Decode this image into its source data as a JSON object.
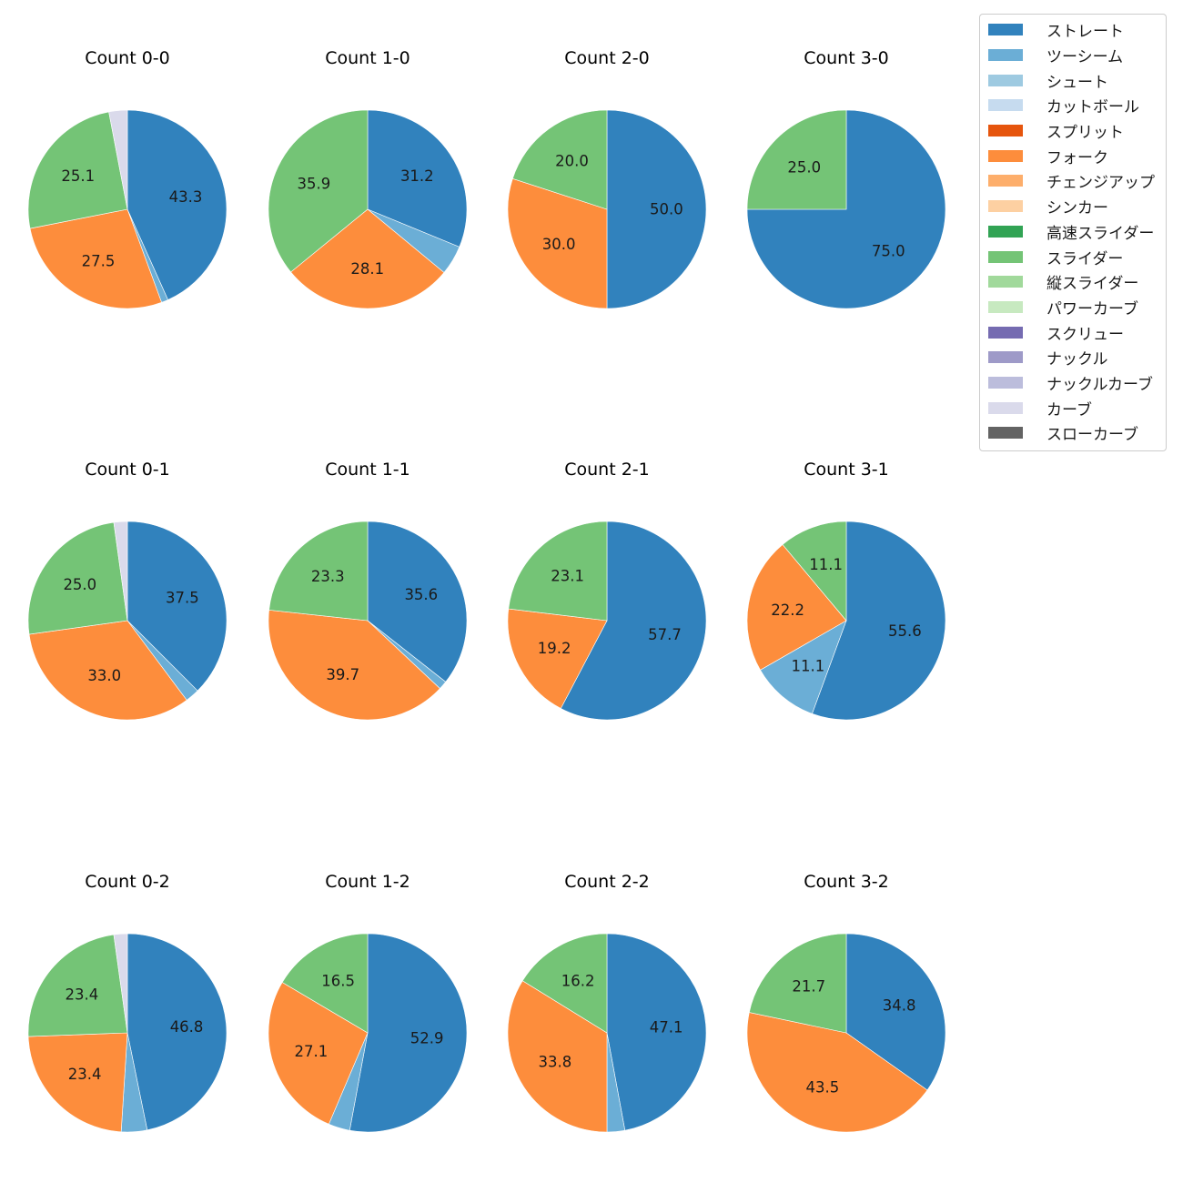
{
  "chart_data": {
    "type": "pie",
    "categories": [
      "ストレート",
      "ツーシーム",
      "シュート",
      "カットボール",
      "スプリット",
      "フォーク",
      "チェンジアップ",
      "シンカー",
      "高速スライダー",
      "スライダー",
      "縦スライダー",
      "パワーカーブ",
      "スクリュー",
      "ナックル",
      "ナックルカーブ",
      "カーブ",
      "スローカーブ"
    ],
    "colors": [
      "#3182bd",
      "#6baed6",
      "#9ecae1",
      "#c6dbef",
      "#e6550d",
      "#fd8d3c",
      "#fdae6b",
      "#fdd0a2",
      "#31a354",
      "#74c476",
      "#a1d99b",
      "#c7e9c0",
      "#756bb1",
      "#9e9ac8",
      "#bcbddc",
      "#dadaeb",
      "#636363"
    ],
    "legend_position": "top-right",
    "charts": [
      {
        "title": "Count 0-0",
        "slices": [
          {
            "category": "ストレート",
            "value": 43.3,
            "label": "43.3"
          },
          {
            "category": "ツーシーム",
            "value": 1.1,
            "label": ""
          },
          {
            "category": "フォーク",
            "value": 27.5,
            "label": "27.5"
          },
          {
            "category": "スライダー",
            "value": 25.1,
            "label": "25.1"
          },
          {
            "category": "カーブ",
            "value": 3.0,
            "label": ""
          }
        ]
      },
      {
        "title": "Count 1-0",
        "slices": [
          {
            "category": "ストレート",
            "value": 31.2,
            "label": "31.2"
          },
          {
            "category": "ツーシーム",
            "value": 4.8,
            "label": ""
          },
          {
            "category": "フォーク",
            "value": 28.1,
            "label": "28.1"
          },
          {
            "category": "スライダー",
            "value": 35.9,
            "label": "35.9"
          }
        ]
      },
      {
        "title": "Count 2-0",
        "slices": [
          {
            "category": "ストレート",
            "value": 50.0,
            "label": "50.0"
          },
          {
            "category": "フォーク",
            "value": 30.0,
            "label": "30.0"
          },
          {
            "category": "スライダー",
            "value": 20.0,
            "label": "20.0"
          }
        ]
      },
      {
        "title": "Count 3-0",
        "slices": [
          {
            "category": "ストレート",
            "value": 75.0,
            "label": "75.0"
          },
          {
            "category": "スライダー",
            "value": 25.0,
            "label": "25.0"
          }
        ]
      },
      {
        "title": "Count 0-1",
        "slices": [
          {
            "category": "ストレート",
            "value": 37.5,
            "label": "37.5"
          },
          {
            "category": "ツーシーム",
            "value": 2.3,
            "label": ""
          },
          {
            "category": "フォーク",
            "value": 33.0,
            "label": "33.0"
          },
          {
            "category": "スライダー",
            "value": 25.0,
            "label": "25.0"
          },
          {
            "category": "カーブ",
            "value": 2.2,
            "label": ""
          }
        ]
      },
      {
        "title": "Count 1-1",
        "slices": [
          {
            "category": "ストレート",
            "value": 35.6,
            "label": "35.6"
          },
          {
            "category": "ツーシーム",
            "value": 1.4,
            "label": ""
          },
          {
            "category": "フォーク",
            "value": 39.7,
            "label": "39.7"
          },
          {
            "category": "スライダー",
            "value": 23.3,
            "label": "23.3"
          }
        ]
      },
      {
        "title": "Count 2-1",
        "slices": [
          {
            "category": "ストレート",
            "value": 57.7,
            "label": "57.7"
          },
          {
            "category": "フォーク",
            "value": 19.2,
            "label": "19.2"
          },
          {
            "category": "スライダー",
            "value": 23.1,
            "label": "23.1"
          }
        ]
      },
      {
        "title": "Count 3-1",
        "slices": [
          {
            "category": "ストレート",
            "value": 55.6,
            "label": "55.6"
          },
          {
            "category": "ツーシーム",
            "value": 11.1,
            "label": "11.1"
          },
          {
            "category": "フォーク",
            "value": 22.2,
            "label": "22.2"
          },
          {
            "category": "スライダー",
            "value": 11.1,
            "label": "11.1"
          }
        ]
      },
      {
        "title": "Count 0-2",
        "slices": [
          {
            "category": "ストレート",
            "value": 46.8,
            "label": "46.8"
          },
          {
            "category": "ツーシーム",
            "value": 4.2,
            "label": ""
          },
          {
            "category": "フォーク",
            "value": 23.4,
            "label": "23.4"
          },
          {
            "category": "スライダー",
            "value": 23.4,
            "label": "23.4"
          },
          {
            "category": "カーブ",
            "value": 2.2,
            "label": ""
          }
        ]
      },
      {
        "title": "Count 1-2",
        "slices": [
          {
            "category": "ストレート",
            "value": 52.9,
            "label": "52.9"
          },
          {
            "category": "ツーシーム",
            "value": 3.5,
            "label": ""
          },
          {
            "category": "フォーク",
            "value": 27.1,
            "label": "27.1"
          },
          {
            "category": "スライダー",
            "value": 16.5,
            "label": "16.5"
          }
        ]
      },
      {
        "title": "Count 2-2",
        "slices": [
          {
            "category": "ストレート",
            "value": 47.1,
            "label": "47.1"
          },
          {
            "category": "ツーシーム",
            "value": 2.9,
            "label": ""
          },
          {
            "category": "フォーク",
            "value": 33.8,
            "label": "33.8"
          },
          {
            "category": "スライダー",
            "value": 16.2,
            "label": "16.2"
          }
        ]
      },
      {
        "title": "Count 3-2",
        "slices": [
          {
            "category": "ストレート",
            "value": 34.8,
            "label": "34.8"
          },
          {
            "category": "フォーク",
            "value": 43.5,
            "label": "43.5"
          },
          {
            "category": "スライダー",
            "value": 21.7,
            "label": "21.7"
          }
        ]
      }
    ]
  }
}
